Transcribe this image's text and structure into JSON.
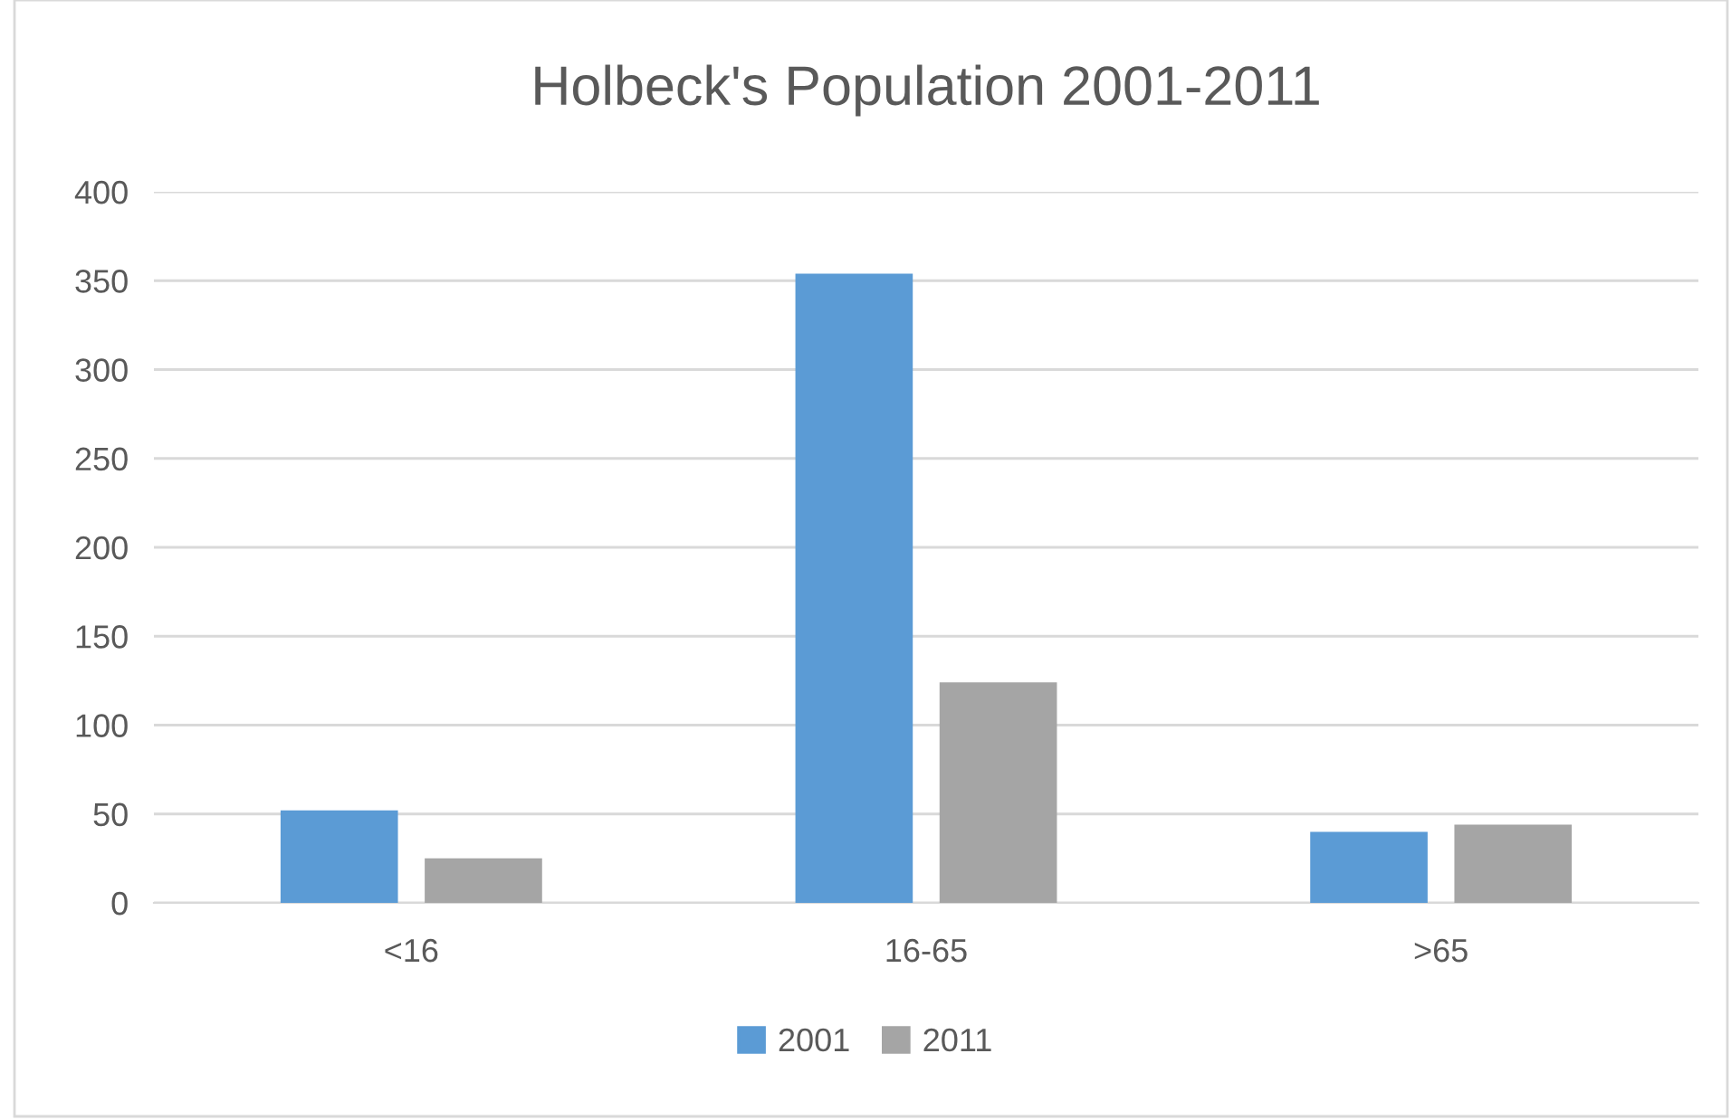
{
  "chart_data": {
    "type": "bar",
    "title": "Holbeck's Population 2001-2011",
    "categories": [
      "<16",
      "16-65",
      ">65"
    ],
    "series": [
      {
        "name": "2001",
        "color": "#5b9bd5",
        "values": [
          52,
          354,
          40
        ]
      },
      {
        "name": "2011",
        "color": "#a5a5a5",
        "values": [
          25,
          124,
          44
        ]
      }
    ],
    "ylim": [
      0,
      400
    ],
    "yticks": [
      0,
      50,
      100,
      150,
      200,
      250,
      300,
      350,
      400
    ],
    "grid": "y",
    "legend": "bottom"
  }
}
